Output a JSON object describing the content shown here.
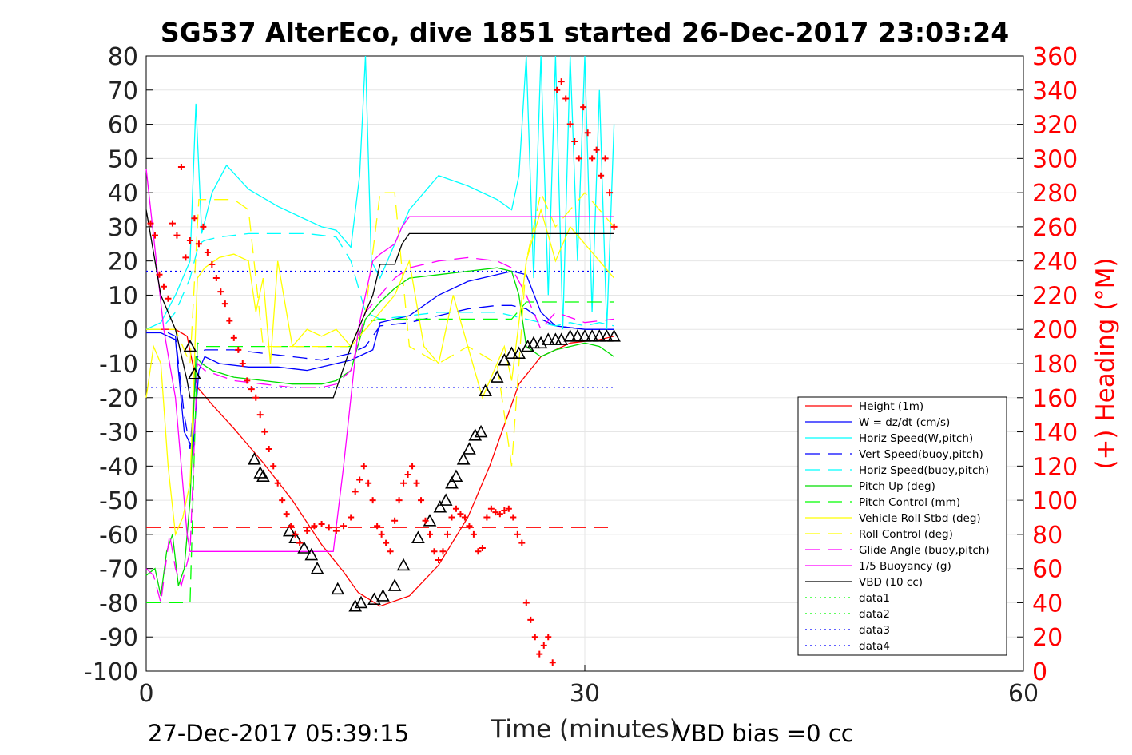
{
  "footer": {
    "timestamp": "27-Dec-2017 05:39:15",
    "vbd_bias": "VBD bias =0 cc"
  },
  "chart_data": {
    "type": "line",
    "title": "SG537 AlterEco, dive 1851 started 26-Dec-2017 23:03:24",
    "xlabel": "Time (minutes)",
    "ylabel_right": "(+) Heading (°M)",
    "xlim": [
      0,
      60
    ],
    "ylim": [
      -100,
      80
    ],
    "ylim_right": [
      0,
      360
    ],
    "xticks": [
      "0",
      "30",
      "60"
    ],
    "yticks": [
      "80",
      "70",
      "60",
      "50",
      "40",
      "30",
      "20",
      "10",
      "0",
      "-10",
      "-20",
      "-30",
      "-40",
      "-50",
      "-60",
      "-70",
      "-80",
      "-90",
      "-100"
    ],
    "yticks_right": [
      "360",
      "340",
      "320",
      "300",
      "280",
      "260",
      "240",
      "220",
      "200",
      "180",
      "160",
      "140",
      "120",
      "100",
      "80",
      "60",
      "40",
      "20",
      "0"
    ],
    "grid": true,
    "legend_position": "bottom-right",
    "colors": {
      "height": "#ff0000",
      "w": "#0000ff",
      "horiz_w": "#00ffff",
      "vert_buoy": "#0000ff",
      "horiz_buoy": "#00ffff",
      "pitch": "#00dd00",
      "pitch_control": "#00ff00",
      "roll": "#ffff00",
      "roll_control": "#ffff00",
      "glide": "#ff00ff",
      "buoyancy": "#ff00ff",
      "vbd": "#000000",
      "heading": "#ff0000",
      "right_axis": "#ff0000"
    },
    "series": [
      {
        "key": "height",
        "name": "Height (1m)",
        "style": "solid",
        "x": [
          0,
          1,
          2,
          2.8,
          3.5,
          4.5,
          6,
          8,
          10,
          12,
          13.5,
          14.5,
          16,
          18,
          20,
          22,
          23.5,
          24.5,
          25.5,
          27,
          29,
          31,
          32
        ],
        "y": [
          0,
          0,
          0,
          -2,
          -17,
          -22,
          -29,
          -39,
          -50,
          -63,
          -71,
          -77,
          -81,
          -78,
          -69,
          -55,
          -40,
          -28,
          -16,
          -8,
          -4,
          -3,
          -2
        ]
      },
      {
        "key": "w",
        "name": "W = dz/dt (cm/s)",
        "style": "solid",
        "x": [
          0,
          1,
          2,
          2.6,
          3.2,
          3.6,
          4,
          5,
          7,
          9,
          11,
          12,
          13,
          14,
          15.5,
          16,
          17,
          18,
          20,
          22,
          24,
          25,
          26,
          27,
          28,
          30,
          32
        ],
        "y": [
          -1,
          -1,
          -3,
          -30,
          -35,
          -12,
          -8,
          -10,
          -11,
          -11,
          -12,
          -11,
          -10,
          -9,
          -6,
          2,
          3,
          4,
          10,
          14,
          16,
          17,
          16,
          5,
          1,
          0,
          0
        ]
      },
      {
        "key": "horiz_w",
        "name": "Horiz Speed(W,pitch)",
        "style": "solid",
        "x": [
          0,
          1,
          2,
          3,
          3.4,
          3.8,
          4.5,
          5.5,
          7,
          9,
          11,
          12,
          13,
          14,
          14.6,
          15,
          15.4,
          16,
          18,
          20,
          22,
          24,
          25,
          25.5,
          26,
          26.5,
          27,
          27.5,
          28,
          28.5,
          29,
          29.5,
          30,
          30.5,
          31,
          31.5,
          32
        ],
        "y": [
          0,
          2,
          10,
          20,
          66,
          28,
          40,
          48,
          41,
          36,
          32,
          30,
          29,
          24,
          45,
          80,
          20,
          15,
          35,
          45,
          42,
          38,
          35,
          45,
          80,
          15,
          80,
          10,
          80,
          0,
          80,
          20,
          80,
          5,
          70,
          0,
          60
        ]
      },
      {
        "key": "vert_buoy",
        "name": "Vert Speed(buoy,pitch)",
        "style": "dashed",
        "x": [
          0,
          1,
          2,
          2.6,
          3,
          3.5,
          4,
          6,
          8,
          10,
          12,
          13,
          14,
          15,
          16,
          18,
          20,
          22,
          24,
          25,
          26,
          27,
          28,
          30,
          32
        ],
        "y": [
          0,
          0,
          -2,
          -25,
          -35,
          -8,
          -6,
          -6,
          -7,
          -8,
          -9,
          -8,
          -7,
          -5,
          1,
          2,
          4,
          6,
          7,
          7,
          6,
          3,
          1,
          0,
          0
        ]
      },
      {
        "key": "horiz_buoy",
        "name": "Horiz Speed(buoy,pitch)",
        "style": "dashed",
        "x": [
          0,
          1,
          2,
          3,
          3.6,
          4,
          5,
          7,
          9,
          11,
          13,
          14,
          15,
          16,
          18,
          20,
          22,
          24,
          25,
          26,
          27,
          28,
          29,
          30,
          31,
          32
        ],
        "y": [
          0,
          0,
          5,
          15,
          25,
          26,
          27,
          28,
          28,
          28,
          27,
          20,
          5,
          3,
          4,
          5,
          5,
          5,
          4,
          3,
          2,
          1,
          2,
          1,
          2,
          1
        ]
      },
      {
        "key": "pitch",
        "name": "Pitch Up (deg)",
        "style": "solid",
        "x": [
          0,
          0.6,
          1,
          1.4,
          1.8,
          2.2,
          2.6,
          3,
          3.4,
          3.8,
          4.5,
          6,
          8,
          10,
          12,
          13,
          14,
          15,
          16,
          17,
          18,
          20,
          22,
          24,
          25,
          25.5,
          26,
          27,
          28,
          29,
          30,
          31,
          32
        ],
        "y": [
          -72,
          -70,
          -78,
          -65,
          -60,
          -75,
          -70,
          -50,
          -8,
          -10,
          -12,
          -14,
          -15,
          -16,
          -16,
          -15,
          -12,
          3,
          8,
          12,
          15,
          16,
          17,
          18,
          17,
          10,
          -5,
          -8,
          -6,
          -5,
          -4,
          -5,
          -8
        ]
      },
      {
        "key": "pitch_control",
        "name": "Pitch Control (mm)",
        "style": "dashed",
        "x": [
          0,
          1,
          2,
          3,
          3.5,
          4,
          6,
          8,
          10,
          12,
          13,
          14,
          15,
          16,
          18,
          20,
          22,
          24,
          25,
          26,
          28,
          30,
          32
        ],
        "y": [
          -80,
          -80,
          -80,
          -80,
          -4,
          -5,
          -5,
          -5,
          -5,
          -5,
          -5,
          -5,
          2,
          3,
          3,
          3,
          3,
          3,
          3,
          8,
          8,
          8,
          8
        ]
      },
      {
        "key": "roll",
        "name": "Vehicle Roll Stbd (deg)",
        "style": "solid",
        "x": [
          0,
          0.5,
          1,
          1.5,
          2,
          2.5,
          3,
          3.5,
          4,
          5,
          6,
          7,
          7.5,
          8,
          8.5,
          9,
          10,
          11,
          12,
          13,
          14,
          15,
          16,
          17,
          18,
          19,
          20,
          21,
          22,
          23,
          24,
          24.5,
          25,
          25.5,
          26,
          27,
          28,
          29,
          30,
          31,
          32
        ],
        "y": [
          -20,
          -5,
          -10,
          -40,
          -60,
          -55,
          -45,
          15,
          18,
          21,
          22,
          20,
          5,
          15,
          -10,
          20,
          -5,
          0,
          -2,
          0,
          -5,
          0,
          5,
          10,
          20,
          -5,
          -10,
          10,
          -5,
          -20,
          -10,
          -5,
          -15,
          2,
          20,
          35,
          20,
          30,
          25,
          20,
          15
        ]
      },
      {
        "key": "roll_control",
        "name": "Roll Control (deg)",
        "style": "dashed",
        "x": [
          0,
          1,
          2,
          3,
          3.6,
          4,
          6,
          7,
          8,
          10,
          12,
          13,
          14,
          15,
          16,
          17,
          18,
          20,
          22,
          24,
          25,
          26,
          27,
          28,
          30,
          32
        ],
        "y": [
          0,
          0,
          0,
          -10,
          38,
          38,
          38,
          35,
          -5,
          -5,
          -5,
          -5,
          -5,
          5,
          40,
          40,
          -5,
          -10,
          -5,
          -10,
          -40,
          20,
          40,
          30,
          40,
          30
        ]
      },
      {
        "key": "glide",
        "name": "Glide Angle (buoy,pitch)",
        "style": "dashed",
        "x": [
          0,
          0.5,
          1,
          1.6,
          2,
          2.4,
          3,
          3.5,
          4,
          6,
          8,
          10,
          12,
          13,
          14,
          15,
          16,
          17,
          18,
          20,
          22,
          24,
          25,
          26,
          27,
          28,
          30,
          32
        ],
        "y": [
          -70,
          -72,
          -80,
          -60,
          -70,
          -75,
          -65,
          -10,
          -12,
          -15,
          -16,
          -17,
          -17,
          -16,
          -12,
          5,
          10,
          15,
          18,
          20,
          21,
          20,
          18,
          10,
          0,
          5,
          2,
          3
        ]
      },
      {
        "key": "buoyancy",
        "name": "1/5 Buoyancy (g)",
        "style": "solid",
        "x": [
          0,
          1.2,
          2,
          2.8,
          3,
          5,
          8,
          11,
          12.8,
          13.5,
          14.5,
          15,
          15.5,
          16,
          17,
          17.5,
          18,
          20,
          25,
          30,
          32
        ],
        "y": [
          47,
          0,
          -20,
          -60,
          -65,
          -65,
          -65,
          -65,
          -65,
          -40,
          0,
          10,
          20,
          22,
          25,
          30,
          33,
          33,
          33,
          33,
          33
        ]
      },
      {
        "key": "vbd",
        "name": "VBD (10 cc)",
        "style": "solid",
        "x": [
          0,
          1,
          2,
          2.8,
          3,
          5,
          8,
          11,
          12.8,
          14,
          14.5,
          15.5,
          16,
          17,
          17.5,
          18,
          20,
          25,
          30,
          32
        ],
        "y": [
          35,
          10,
          0,
          -15,
          -20,
          -20,
          -20,
          -20,
          -20,
          -5,
          0,
          10,
          19,
          19,
          25,
          28,
          28,
          28,
          28,
          28
        ]
      },
      {
        "name": "data1",
        "style": "dotted",
        "color": "#00ff00",
        "x": [],
        "y": []
      },
      {
        "name": "data2",
        "style": "dotted",
        "color": "#00ff00",
        "x": [],
        "y": []
      },
      {
        "name": "data3",
        "style": "dotted",
        "color": "#0000ff",
        "x": [],
        "y": []
      },
      {
        "name": "data4",
        "style": "dotted",
        "color": "#0000ff",
        "x": [],
        "y": []
      }
    ],
    "reference_lines": [
      {
        "axis": "left",
        "y": 17,
        "style": "dotted",
        "color": "#0000ff",
        "x": [
          0,
          32
        ]
      },
      {
        "axis": "left",
        "y": -17,
        "style": "dotted",
        "color": "#0000ff",
        "x": [
          0,
          32
        ]
      },
      {
        "axis": "left",
        "y": -58,
        "style": "dashed",
        "color": "#ff0000",
        "x": [
          0,
          32
        ]
      }
    ],
    "markers": {
      "x": [
        3,
        3.3,
        7.4,
        7.8,
        8,
        9.8,
        10.2,
        10.8,
        11.3,
        11.7,
        13.1,
        14.3,
        14.7,
        15.6,
        16.2,
        17,
        17.6,
        18.6,
        19.4,
        20.1,
        20.5,
        20.9,
        21.2,
        21.7,
        22.1,
        22.5,
        22.9,
        23.2,
        24,
        24.5,
        25,
        25.5,
        26.1,
        26.5,
        27,
        27.5,
        28,
        28.4,
        29,
        29.5,
        30,
        30.5,
        31,
        31.5,
        32
      ],
      "y": [
        -5,
        -13,
        -38,
        -42,
        -43,
        -59,
        -61,
        -64,
        -66,
        -70,
        -76,
        -81,
        -80,
        -79,
        -78,
        -75,
        -69,
        -61,
        -56,
        -52,
        -50,
        -45,
        -43,
        -38,
        -35,
        -31,
        -30,
        -18,
        -14,
        -9,
        -7,
        -7,
        -5,
        -4,
        -4,
        -3,
        -3,
        -3,
        -2,
        -2,
        -2,
        -2,
        -2,
        -2,
        -2
      ]
    },
    "heading": {
      "x": [
        0.3,
        0.6,
        0.9,
        1.2,
        1.5,
        1.8,
        2.1,
        2.4,
        2.7,
        3,
        3.3,
        3.6,
        3.9,
        4.2,
        4.5,
        4.8,
        5.1,
        5.4,
        5.7,
        6,
        6.3,
        6.6,
        6.9,
        7.2,
        7.5,
        7.8,
        8.1,
        8.4,
        8.7,
        9,
        9.3,
        9.6,
        9.9,
        10.2,
        10.5,
        11,
        11.5,
        12,
        12.5,
        13,
        13.5,
        14,
        14.3,
        14.6,
        14.9,
        15.2,
        15.5,
        15.8,
        16.1,
        16.4,
        16.7,
        17,
        17.3,
        17.6,
        17.9,
        18.2,
        18.5,
        18.8,
        19.1,
        19.4,
        19.7,
        20,
        20.3,
        20.6,
        20.9,
        21.2,
        21.5,
        21.8,
        22.1,
        22.4,
        22.7,
        23,
        23.3,
        23.6,
        23.9,
        24.2,
        24.5,
        24.8,
        25.1,
        25.4,
        25.7,
        26,
        26.3,
        26.6,
        26.9,
        27.2,
        27.5,
        27.8,
        28.1,
        28.4,
        28.7,
        29,
        29.3,
        29.6,
        29.9,
        30.2,
        30.5,
        30.8,
        31.1,
        31.4,
        31.7,
        32
      ],
      "y": [
        262,
        255,
        232,
        225,
        218,
        262,
        255,
        295,
        242,
        252,
        265,
        250,
        260,
        245,
        238,
        230,
        222,
        215,
        205,
        195,
        188,
        180,
        170,
        165,
        160,
        150,
        140,
        130,
        120,
        110,
        100,
        92,
        85,
        80,
        75,
        82,
        85,
        86,
        84,
        82,
        85,
        90,
        105,
        112,
        120,
        110,
        100,
        85,
        80,
        75,
        70,
        88,
        100,
        110,
        115,
        120,
        110,
        100,
        88,
        80,
        70,
        65,
        70,
        80,
        90,
        95,
        92,
        90,
        85,
        80,
        70,
        72,
        90,
        95,
        93,
        92,
        94,
        95,
        90,
        80,
        75,
        40,
        30,
        20,
        10,
        15,
        20,
        5,
        340,
        345,
        335,
        320,
        310,
        300,
        330,
        315,
        300,
        305,
        290,
        300,
        280,
        260
      ]
    }
  }
}
